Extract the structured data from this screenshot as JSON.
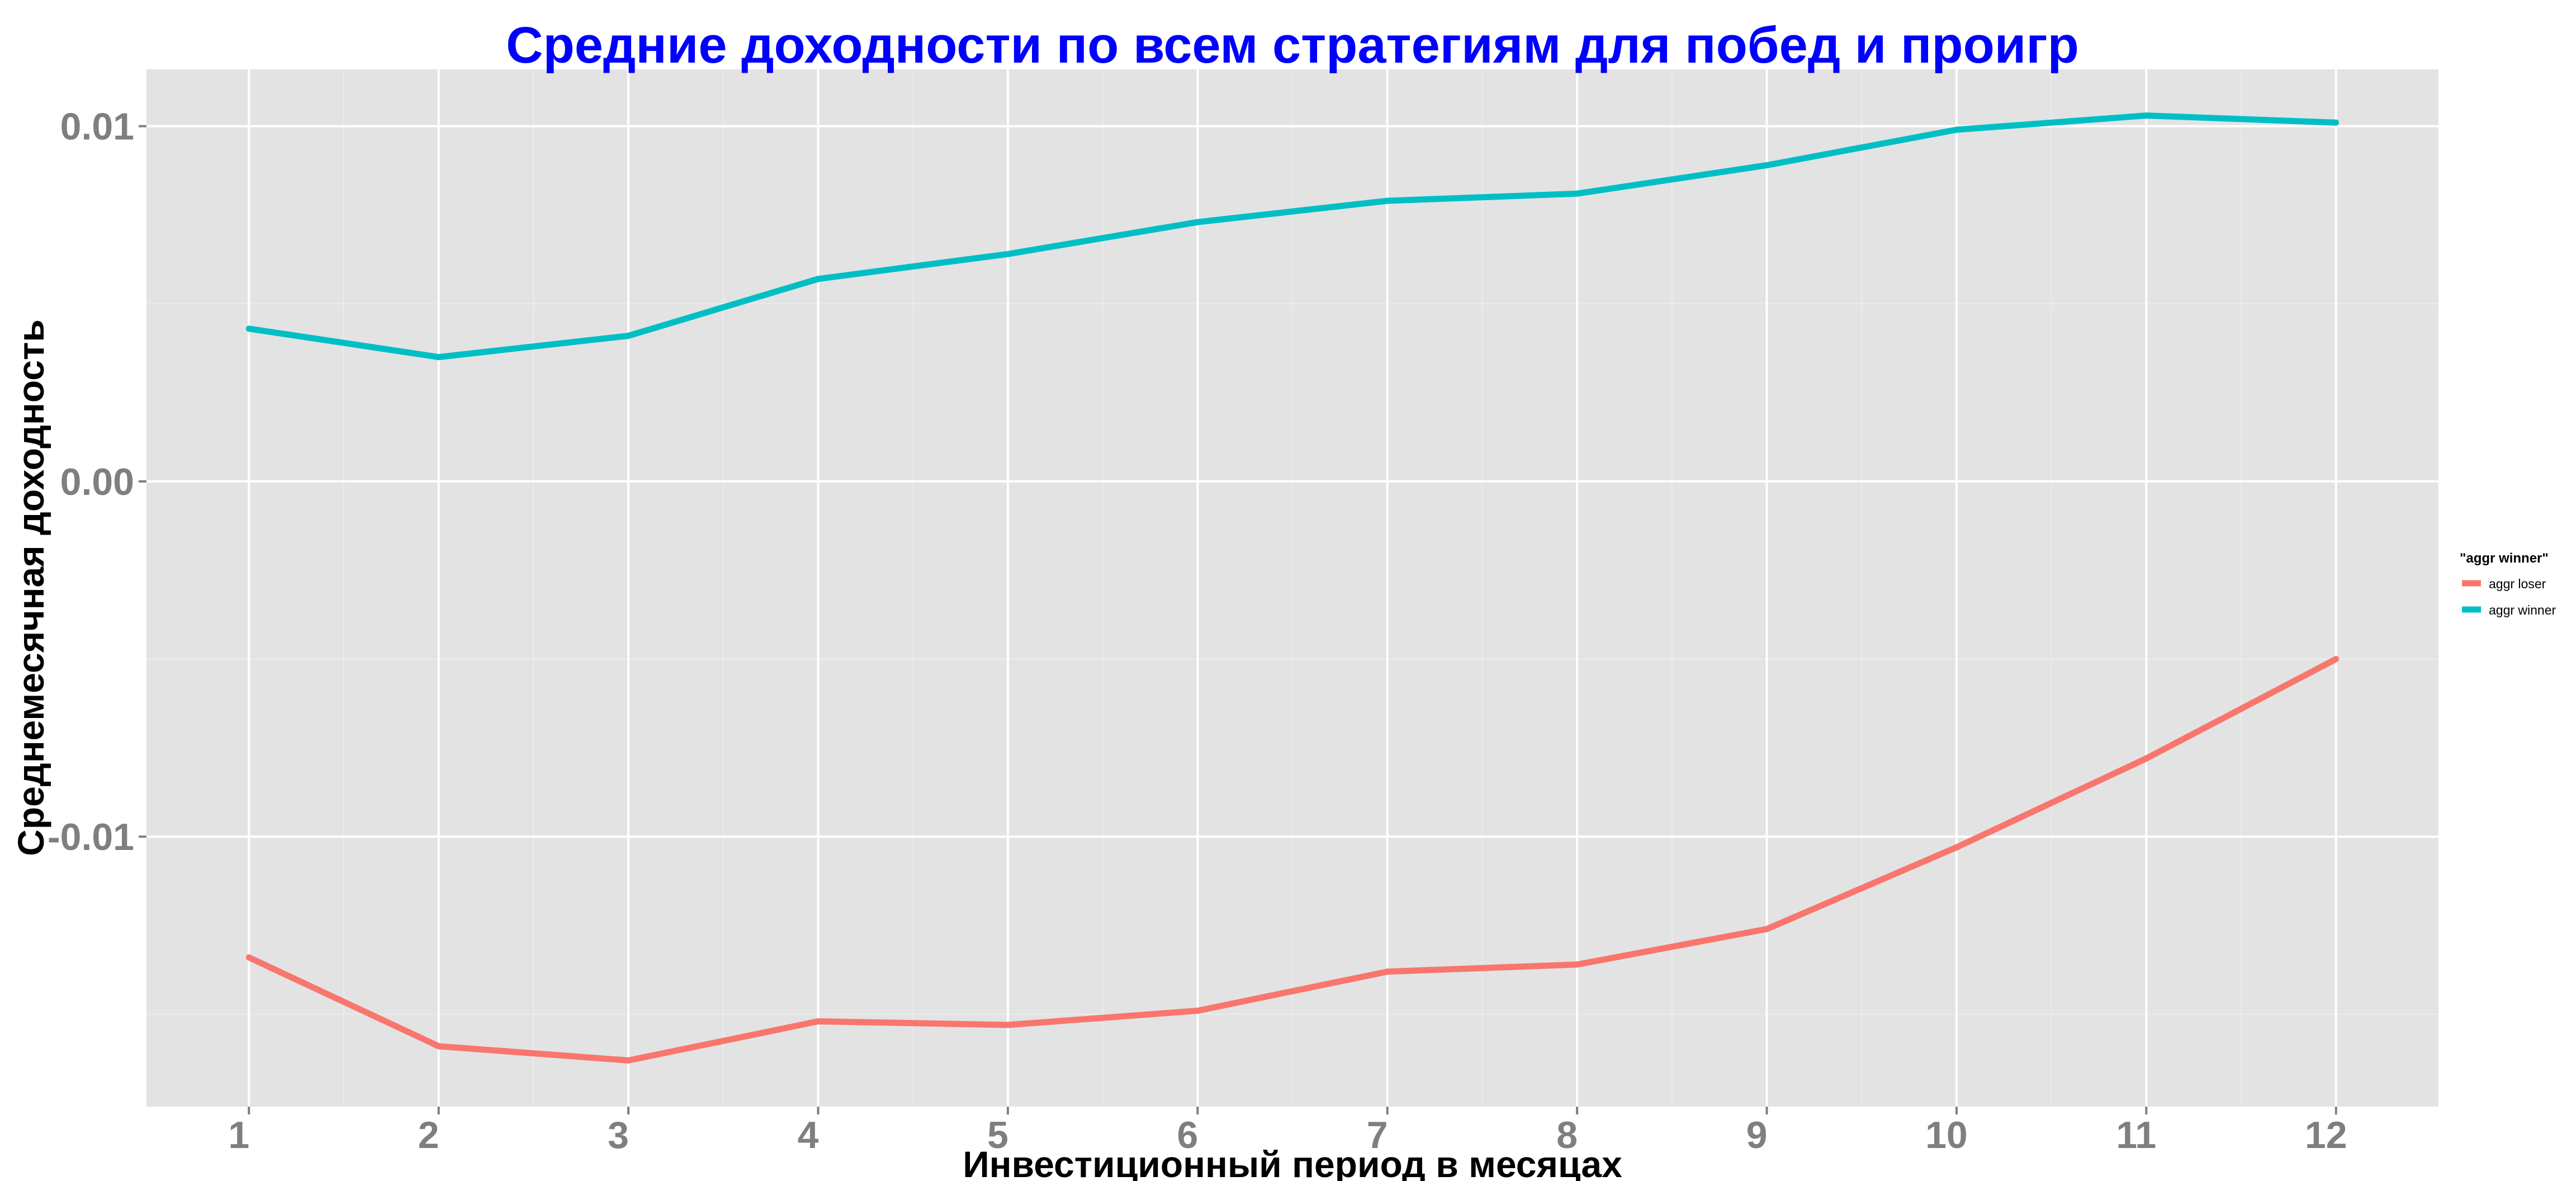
{
  "colors": {
    "title": "#0000ff",
    "panel_background": "#e3e3e3",
    "grid_major": "#ffffff",
    "grid_minor": "#ececec",
    "tick_text": "#7f7f7f"
  },
  "chart_data": {
    "type": "line",
    "title": "Средние доходности по всем стратегиям для побед и проигр",
    "xlabel": "Инвестиционный период в месяцах",
    "ylabel": "Среднемесячная доходность",
    "x": [
      1,
      2,
      3,
      4,
      5,
      6,
      7,
      8,
      9,
      10,
      11,
      12
    ],
    "x_tick_labels": [
      "1",
      "2",
      "3",
      "4",
      "5",
      "6",
      "7",
      "8",
      "9",
      "10",
      "11",
      "12"
    ],
    "xlim": [
      0.46,
      12.54
    ],
    "ylim": [
      -0.0176,
      0.0116
    ],
    "y_ticks": [
      0.01,
      0.0,
      -0.01
    ],
    "y_tick_labels": [
      "0.01",
      "0.00",
      "-0.01"
    ],
    "grid": true,
    "legend": {
      "title": "\"aggr winner\"",
      "position": "right"
    },
    "series": [
      {
        "name": "aggr loser",
        "color": "#f8766d",
        "values": [
          -0.0134,
          -0.0159,
          -0.0163,
          -0.0152,
          -0.0153,
          -0.0149,
          -0.0138,
          -0.0136,
          -0.0126,
          -0.0103,
          -0.0078,
          -0.005
        ]
      },
      {
        "name": "aggr winner",
        "color": "#00bfc4",
        "values": [
          0.0043,
          0.0035,
          0.0041,
          0.0057,
          0.0064,
          0.0073,
          0.0079,
          0.0081,
          0.0089,
          0.0099,
          0.0103,
          0.0101
        ]
      }
    ]
  }
}
